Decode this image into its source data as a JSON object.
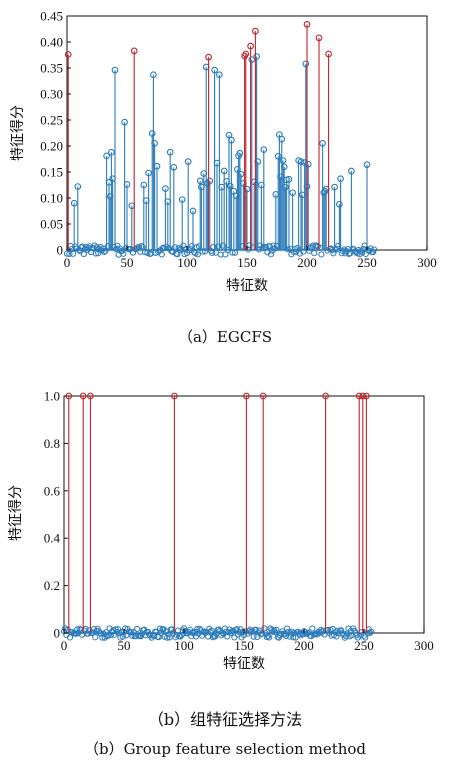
{
  "chart_data": [
    {
      "type": "stem",
      "caption": "（a）EGCFS",
      "xlabel": "特征数",
      "ylabel": "特征得分",
      "xlim": [
        0,
        300
      ],
      "ylim": [
        0,
        0.45
      ],
      "xticks": [
        0,
        50,
        100,
        150,
        200,
        250,
        300
      ],
      "yticks": [
        "0",
        "0.05",
        "0.10",
        "0.15",
        "0.20",
        "0.25",
        "0.30",
        "0.35",
        "0.40",
        "0.45"
      ],
      "colors": {
        "base": "#2b7bba",
        "selected": "#c0242b"
      },
      "selected_points": [
        {
          "x": 1,
          "y": 0.376
        },
        {
          "x": 56,
          "y": 0.383
        },
        {
          "x": 118,
          "y": 0.371
        },
        {
          "x": 148,
          "y": 0.373
        },
        {
          "x": 149,
          "y": 0.377
        },
        {
          "x": 153,
          "y": 0.392
        },
        {
          "x": 157,
          "y": 0.421
        },
        {
          "x": 200,
          "y": 0.434
        },
        {
          "x": 210,
          "y": 0.408
        },
        {
          "x": 218,
          "y": 0.377
        }
      ],
      "points": [
        {
          "x": 6,
          "y": 0.09
        },
        {
          "x": 9,
          "y": 0.122
        },
        {
          "x": 33,
          "y": 0.181
        },
        {
          "x": 35,
          "y": 0.13
        },
        {
          "x": 36,
          "y": 0.103
        },
        {
          "x": 37,
          "y": 0.188
        },
        {
          "x": 38,
          "y": 0.137
        },
        {
          "x": 40,
          "y": 0.346
        },
        {
          "x": 48,
          "y": 0.246
        },
        {
          "x": 50,
          "y": 0.126
        },
        {
          "x": 54,
          "y": 0.085
        },
        {
          "x": 64,
          "y": 0.125
        },
        {
          "x": 66,
          "y": 0.095
        },
        {
          "x": 68,
          "y": 0.148
        },
        {
          "x": 71,
          "y": 0.224
        },
        {
          "x": 72,
          "y": 0.337
        },
        {
          "x": 73,
          "y": 0.205
        },
        {
          "x": 75,
          "y": 0.161
        },
        {
          "x": 82,
          "y": 0.118
        },
        {
          "x": 84,
          "y": 0.093
        },
        {
          "x": 86,
          "y": 0.188
        },
        {
          "x": 89,
          "y": 0.159
        },
        {
          "x": 96,
          "y": 0.097
        },
        {
          "x": 101,
          "y": 0.17
        },
        {
          "x": 105,
          "y": 0.075
        },
        {
          "x": 111,
          "y": 0.133
        },
        {
          "x": 112,
          "y": 0.121
        },
        {
          "x": 114,
          "y": 0.147
        },
        {
          "x": 116,
          "y": 0.352
        },
        {
          "x": 117,
          "y": 0.128
        },
        {
          "x": 119,
          "y": 0.133
        },
        {
          "x": 123,
          "y": 0.346
        },
        {
          "x": 125,
          "y": 0.167
        },
        {
          "x": 127,
          "y": 0.337
        },
        {
          "x": 129,
          "y": 0.121
        },
        {
          "x": 131,
          "y": 0.152
        },
        {
          "x": 133,
          "y": 0.132
        },
        {
          "x": 135,
          "y": 0.221
        },
        {
          "x": 136,
          "y": 0.123
        },
        {
          "x": 137,
          "y": 0.211
        },
        {
          "x": 139,
          "y": 0.113
        },
        {
          "x": 141,
          "y": 0.104
        },
        {
          "x": 142,
          "y": 0.155
        },
        {
          "x": 143,
          "y": 0.181
        },
        {
          "x": 144,
          "y": 0.186
        },
        {
          "x": 145,
          "y": 0.146
        },
        {
          "x": 147,
          "y": 0.128
        },
        {
          "x": 150,
          "y": 0.117
        },
        {
          "x": 154,
          "y": 0.366
        },
        {
          "x": 156,
          "y": 0.131
        },
        {
          "x": 158,
          "y": 0.372
        },
        {
          "x": 159,
          "y": 0.17
        },
        {
          "x": 162,
          "y": 0.125
        },
        {
          "x": 164,
          "y": 0.193
        },
        {
          "x": 174,
          "y": 0.107
        },
        {
          "x": 176,
          "y": 0.18
        },
        {
          "x": 177,
          "y": 0.222
        },
        {
          "x": 178,
          "y": 0.141
        },
        {
          "x": 179,
          "y": 0.213
        },
        {
          "x": 180,
          "y": 0.172
        },
        {
          "x": 181,
          "y": 0.16
        },
        {
          "x": 182,
          "y": 0.121
        },
        {
          "x": 183,
          "y": 0.135
        },
        {
          "x": 185,
          "y": 0.136
        },
        {
          "x": 188,
          "y": 0.11
        },
        {
          "x": 193,
          "y": 0.172
        },
        {
          "x": 195,
          "y": 0.17
        },
        {
          "x": 196,
          "y": 0.106
        },
        {
          "x": 198,
          "y": 0.168
        },
        {
          "x": 199,
          "y": 0.358
        },
        {
          "x": 200,
          "y": 0.122
        },
        {
          "x": 201,
          "y": 0.165
        },
        {
          "x": 213,
          "y": 0.205
        },
        {
          "x": 214,
          "y": 0.11
        },
        {
          "x": 215,
          "y": 0.113
        },
        {
          "x": 216,
          "y": 0.117
        },
        {
          "x": 223,
          "y": 0.121
        },
        {
          "x": 227,
          "y": 0.088
        },
        {
          "x": 228,
          "y": 0.137
        },
        {
          "x": 237,
          "y": 0.152
        },
        {
          "x": 250,
          "y": 0.164
        }
      ],
      "baseline_x_range": [
        0,
        256
      ]
    },
    {
      "type": "stem",
      "caption_cn": "（b）组特征选择方法",
      "caption_en": "（b）Group feature selection method",
      "xlabel": "特征数",
      "ylabel": "特征得分",
      "xlim": [
        0,
        300
      ],
      "ylim": [
        0,
        1.0
      ],
      "xticks": [
        0,
        50,
        100,
        150,
        200,
        250,
        300
      ],
      "yticks": [
        "0",
        "0.2",
        "0.4",
        "0.6",
        "0.8",
        "1.0"
      ],
      "colors": {
        "base": "#2b7bba",
        "selected": "#c0242b"
      },
      "selected_points": [
        {
          "x": 4,
          "y": 1.0
        },
        {
          "x": 16,
          "y": 1.0
        },
        {
          "x": 22,
          "y": 1.0
        },
        {
          "x": 92,
          "y": 1.0
        },
        {
          "x": 152,
          "y": 1.0
        },
        {
          "x": 166,
          "y": 1.0
        },
        {
          "x": 218,
          "y": 1.0
        },
        {
          "x": 246,
          "y": 1.0
        },
        {
          "x": 249,
          "y": 1.0
        },
        {
          "x": 252,
          "y": 1.0
        }
      ],
      "points": [],
      "baseline_x_range": [
        0,
        256
      ]
    }
  ]
}
